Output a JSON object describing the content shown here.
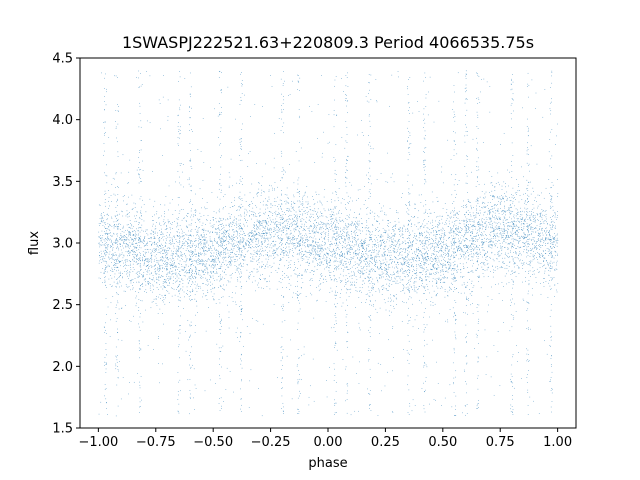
{
  "chart_data": {
    "type": "scatter",
    "title": "1SWASPJ222521.63+220809.3 Period 4066535.75s",
    "xlabel": "phase",
    "ylabel": "flux",
    "xlim": [
      -1.08,
      1.08
    ],
    "ylim": [
      1.5,
      4.5
    ],
    "xticks": [
      -1.0,
      -0.75,
      -0.5,
      -0.25,
      0.0,
      0.25,
      0.5,
      0.75,
      1.0
    ],
    "xtick_labels": [
      "−1.00",
      "−0.75",
      "−0.50",
      "−0.25",
      "0.00",
      "0.25",
      "0.50",
      "0.75",
      "1.00"
    ],
    "yticks": [
      1.5,
      2.0,
      2.5,
      3.0,
      3.5,
      4.0,
      4.5
    ],
    "ytick_labels": [
      "1.5",
      "2.0",
      "2.5",
      "3.0",
      "3.5",
      "4.0",
      "4.5"
    ],
    "grid": false,
    "series": [
      {
        "color": "#1f77b4",
        "marker_size": 0.6,
        "x_range": [
          -1.0,
          1.0
        ],
        "baseline_flux": 3.0,
        "trend_points": [
          {
            "x": -1.0,
            "y": 3.0
          },
          {
            "x": -0.75,
            "y": 2.88
          },
          {
            "x": -0.5,
            "y": 2.92
          },
          {
            "x": -0.25,
            "y": 3.12
          },
          {
            "x": 0.0,
            "y": 3.0
          },
          {
            "x": 0.25,
            "y": 2.88
          },
          {
            "x": 0.5,
            "y": 2.92
          },
          {
            "x": 0.75,
            "y": 3.12
          },
          {
            "x": 1.0,
            "y": 3.0
          }
        ],
        "dense_band_halfwidth": 0.18,
        "outlier_range": [
          1.6,
          4.4
        ],
        "vertical_streaks_x": [
          -0.97,
          -0.92,
          -0.82,
          -0.65,
          -0.6,
          -0.47,
          -0.38,
          -0.2,
          -0.13,
          0.03,
          0.08,
          0.18,
          0.35,
          0.42,
          0.55,
          0.6,
          0.65,
          0.8,
          0.87,
          0.97
        ]
      }
    ]
  }
}
